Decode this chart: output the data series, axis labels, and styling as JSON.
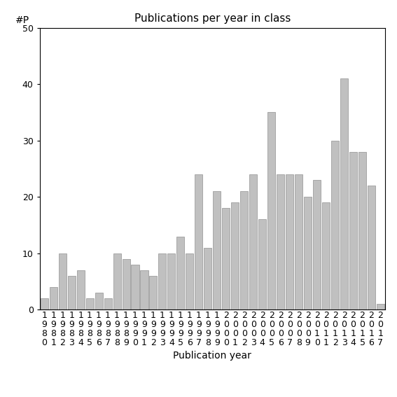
{
  "title": "Publications per year in class",
  "xlabel": "Publication year",
  "ylabel": "#P",
  "years": [
    1980,
    1981,
    1982,
    1983,
    1984,
    1985,
    1986,
    1987,
    1988,
    1989,
    1990,
    1991,
    1992,
    1993,
    1994,
    1995,
    1996,
    1997,
    1998,
    1999,
    2000,
    2001,
    2002,
    2003,
    2004,
    2005,
    2006,
    2007,
    2008,
    2009,
    2010,
    2011,
    2012,
    2013,
    2014,
    2015,
    2016,
    2017
  ],
  "values": [
    2,
    4,
    10,
    6,
    7,
    2,
    3,
    2,
    10,
    9,
    8,
    7,
    6,
    10,
    10,
    13,
    10,
    24,
    11,
    21,
    18,
    19,
    21,
    24,
    16,
    35,
    24,
    24,
    24,
    20,
    23,
    19,
    30,
    41,
    28,
    28,
    22,
    1
  ],
  "bar_color": "#c0c0c0",
  "bar_edgecolor": "#909090",
  "ylim": [
    0,
    50
  ],
  "yticks": [
    0,
    10,
    20,
    30,
    40,
    50
  ],
  "bg_color": "#ffffff",
  "title_fontsize": 11,
  "label_fontsize": 10,
  "tick_fontsize": 9,
  "ylabel_fontsize": 10
}
